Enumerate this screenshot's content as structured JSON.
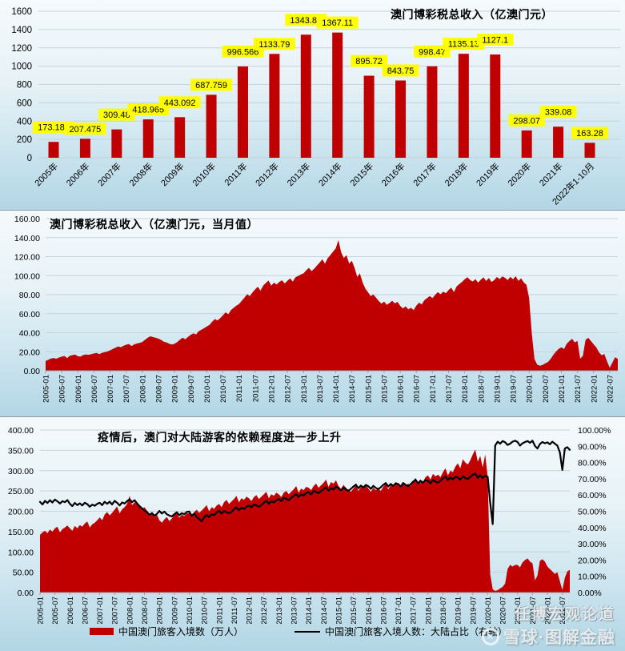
{
  "watermark": {
    "line1": "任博宏观论道",
    "line2": "雪球·图解金融",
    "logo_glyph": "✕"
  },
  "chart_data": [
    {
      "type": "bar",
      "title": "澳门博彩税总收入（亿澳门元）",
      "categories": [
        "2005年",
        "2006年",
        "2007年",
        "2008年",
        "2009年",
        "2010年",
        "2011年",
        "2012年",
        "2013年",
        "2014年",
        "2015年",
        "2016年",
        "2017年",
        "2018年",
        "2019年",
        "2020年",
        "2021年",
        "2022年1-10月"
      ],
      "values": [
        173.187,
        207.475,
        309.48,
        418.965,
        443.092,
        687.759,
        996.566,
        1133.79,
        1343.81,
        1367.11,
        895.72,
        843.75,
        998.47,
        1135.13,
        1127.1,
        298.07,
        339.08,
        163.28
      ],
      "data_labels": [
        "173.187",
        "207.475",
        "309.48",
        "418.965",
        "443.092",
        "687.759",
        "996.566",
        "1133.79",
        "1343.81",
        "1367.11",
        "895.72",
        "843.75",
        "998.47",
        "1135.13",
        "1127.1",
        "298.07",
        "339.08",
        "163.28"
      ],
      "ylim": [
        0,
        1600
      ],
      "y_tick_labels": [
        "0",
        "200",
        "400",
        "600",
        "800",
        "1000",
        "1200",
        "1400",
        "1600"
      ],
      "bar_color": "#C00000",
      "label_bg": "#FFFF00",
      "grid": true,
      "legend": "none"
    },
    {
      "type": "area",
      "title": "澳门博彩税总收入（亿澳门元，当月值）",
      "x_range": [
        "2005-01",
        "2022-10"
      ],
      "x_tick_labels": [
        "2005-01",
        "2005-07",
        "2006-01",
        "2006-07",
        "2007-01",
        "2007-07",
        "2008-01",
        "2008-07",
        "2009-01",
        "2009-07",
        "2010-01",
        "2010-07",
        "2011-01",
        "2011-07",
        "2012-01",
        "2012-07",
        "2013-01",
        "2013-07",
        "2014-01",
        "2014-07",
        "2015-01",
        "2015-07",
        "2016-01",
        "2016-07",
        "2017-01",
        "2017-07",
        "2018-01",
        "2018-07",
        "2019-01",
        "2019-07",
        "2020-01",
        "2020-07",
        "2021-01",
        "2021-07",
        "2022-01",
        "2022-07"
      ],
      "values": [
        10.2,
        11.5,
        12.8,
        13.4,
        12.6,
        13.9,
        14.8,
        15.6,
        13.2,
        15.8,
        16.4,
        17.1,
        15.2,
        14.8,
        16.5,
        17.2,
        16.8,
        17.5,
        18.2,
        18.8,
        17.4,
        18.9,
        19.6,
        20.3,
        21.5,
        22.8,
        24.2,
        25.6,
        24.8,
        26.2,
        27.4,
        28.1,
        25.9,
        27.8,
        28.6,
        29.4,
        30.2,
        32.5,
        34.8,
        36.2,
        35.4,
        34.6,
        33.8,
        32.4,
        30.6,
        29.8,
        28.4,
        27.6,
        28.4,
        30.2,
        32.6,
        34.8,
        33.2,
        35.6,
        37.8,
        39.4,
        38.2,
        41.6,
        43.2,
        44.8,
        46.5,
        48.2,
        51.6,
        54.3,
        52.8,
        55.4,
        58.2,
        61.5,
        59.4,
        63.8,
        66.2,
        68.4,
        70.2,
        73.5,
        76.8,
        80.4,
        78.6,
        82.3,
        85.6,
        88.4,
        84.2,
        89.6,
        92.4,
        94.8,
        89.4,
        92.6,
        90.8,
        93.4,
        95.2,
        91.8,
        94.6,
        97.2,
        93.8,
        98.4,
        99.6,
        101.2,
        102.4,
        105.6,
        108.2,
        104.8,
        107.4,
        110.6,
        113.8,
        117.2,
        112.6,
        118.4,
        121.6,
        125.2,
        128.6,
        137.4,
        124.8,
        118.6,
        121.4,
        112.8,
        115.6,
        108.4,
        98.6,
        102.4,
        92.8,
        86.4,
        82.6,
        78.4,
        80.2,
        76.8,
        73.4,
        70.6,
        72.8,
        69.4,
        71.2,
        73.6,
        70.8,
        72.4,
        68.2,
        65.4,
        67.8,
        64.6,
        66.2,
        63.8,
        68.4,
        71.6,
        69.8,
        74.2,
        76.4,
        78.6,
        76.4,
        79.8,
        82.6,
        80.4,
        83.2,
        81.6,
        84.8,
        87.4,
        82.8,
        88.6,
        91.2,
        93.4,
        96.2,
        98.4,
        95.6,
        93.8,
        96.4,
        92.6,
        95.8,
        98.2,
        94.4,
        97.6,
        93.2,
        95.4,
        98.6,
        96.4,
        99.2,
        97.8,
        95.4,
        98.8,
        96.2,
        99.4,
        94.6,
        97.2,
        92.8,
        90.4,
        76.2,
        38.4,
        12.2,
        6.4,
        5.2,
        6.1,
        7.8,
        9.2,
        12.4,
        16.6,
        20.2,
        23.1,
        24.6,
        22.8,
        28.4,
        31.2,
        33.6,
        29.8,
        31.4,
        12.6,
        15.8,
        32.4,
        34.6,
        31.2,
        27.8,
        24.6,
        19.4,
        16.2,
        17.6,
        9.8,
        3.2,
        8.6,
        14.2,
        12.4
      ],
      "ylim": [
        0,
        160
      ],
      "y_tick_labels": [
        "0.00",
        "20.00",
        "40.00",
        "60.00",
        "80.00",
        "100.00",
        "120.00",
        "140.00",
        "160.00"
      ],
      "color": "#C00000",
      "grid": true,
      "legend": "none"
    },
    {
      "type": "combo",
      "title": "疫情后，澳门对大陆游客的依赖程度进一步上升",
      "x_range": [
        "2005-01",
        "2022-10"
      ],
      "x_tick_labels": [
        "2005-01",
        "2005-07",
        "2006-01",
        "2006-07",
        "2007-01",
        "2007-07",
        "2008-01",
        "2008-07",
        "2009-01",
        "2009-07",
        "2010-01",
        "2010-07",
        "2011-01",
        "2011-07",
        "2012-01",
        "2012-07",
        "2013-01",
        "2013-07",
        "2014-01",
        "2014-07",
        "2015-01",
        "2015-07",
        "2016-01",
        "2016-07",
        "2017-01",
        "2017-07",
        "2018-01",
        "2018-07",
        "2019-01",
        "2019-07",
        "2020-01",
        "2020-07",
        "2021-01",
        "2021-07",
        "2022-01",
        "2022-07"
      ],
      "left_ylim": [
        0,
        400
      ],
      "left_y_tick_labels": [
        "0.00",
        "50.00",
        "100.00",
        "150.00",
        "200.00",
        "250.00",
        "300.00",
        "350.00",
        "400.00"
      ],
      "right_ylim": [
        0,
        100
      ],
      "right_y_tick_labels": [
        "0.00%",
        "10.00%",
        "20.00%",
        "30.00%",
        "40.00%",
        "50.00%",
        "60.00%",
        "70.00%",
        "80.00%",
        "90.00%",
        "100.00%"
      ],
      "legend_position": "bottom",
      "series": [
        {
          "name": "中国澳门旅客入境数（万人）",
          "type": "area",
          "axis": "left",
          "color": "#C00000",
          "values": [
            142,
            148,
            152,
            146,
            155,
            150,
            158,
            162,
            148,
            156,
            160,
            165,
            158,
            152,
            164,
            158,
            166,
            162,
            170,
            175,
            160,
            168,
            172,
            178,
            185,
            178,
            192,
            198,
            190,
            196,
            204,
            212,
            195,
            205,
            210,
            218,
            238,
            215,
            222,
            218,
            212,
            205,
            210,
            202,
            188,
            195,
            185,
            192,
            178,
            172,
            180,
            186,
            176,
            182,
            190,
            196,
            184,
            192,
            188,
            195,
            195,
            188,
            198,
            204,
            196,
            202,
            208,
            215,
            200,
            210,
            206,
            214,
            218,
            210,
            222,
            228,
            218,
            224,
            230,
            238,
            222,
            232,
            228,
            236,
            232,
            225,
            235,
            240,
            230,
            236,
            242,
            248,
            232,
            242,
            238,
            246,
            242,
            235,
            246,
            250,
            242,
            248,
            254,
            262,
            246,
            256,
            252,
            260,
            258,
            252,
            262,
            268,
            258,
            264,
            270,
            278,
            260,
            272,
            268,
            276,
            262,
            255,
            265,
            258,
            252,
            248,
            256,
            264,
            250,
            260,
            256,
            266,
            256,
            248,
            258,
            252,
            256,
            250,
            260,
            268,
            254,
            264,
            262,
            272,
            268,
            258,
            270,
            264,
            268,
            262,
            274,
            282,
            266,
            276,
            272,
            284,
            288,
            278,
            292,
            286,
            290,
            284,
            296,
            306,
            288,
            300,
            296,
            310,
            318,
            306,
            328,
            320,
            315,
            326,
            340,
            352,
            322,
            336,
            308,
            340,
            285,
            46,
            8,
            4,
            6,
            10,
            14,
            22,
            58,
            68,
            64,
            68,
            68,
            62,
            74,
            80,
            84,
            76,
            72,
            30,
            42,
            78,
            82,
            76,
            64,
            58,
            52,
            46,
            50,
            28,
            6,
            36,
            52,
            56
          ]
        },
        {
          "name": "中国澳门旅客入境人数：大陆占比（右轴）",
          "type": "line",
          "axis": "right",
          "color": "#000000",
          "values": [
            55.8,
            54.2,
            56.4,
            55.1,
            56.8,
            55.4,
            57.2,
            56.1,
            54.8,
            56.2,
            55.6,
            56.9,
            54.6,
            53.2,
            55.1,
            53.8,
            54.9,
            53.6,
            55.2,
            54.4,
            52.8,
            54.1,
            53.4,
            54.6,
            55.2,
            53.8,
            55.8,
            54.6,
            55.9,
            54.2,
            56.4,
            55.2,
            53.6,
            55.4,
            54.8,
            56.2,
            57.4,
            55.6,
            56.8,
            54.9,
            53.2,
            51.8,
            50.4,
            49.6,
            47.8,
            48.9,
            47.2,
            48.4,
            50.2,
            48.6,
            49.8,
            48.2,
            47.4,
            46.8,
            48.2,
            49.4,
            47.6,
            48.8,
            48.2,
            49.6,
            49.8,
            47.2,
            48.6,
            46.4,
            45.2,
            43.8,
            46.2,
            47.8,
            46.4,
            48.2,
            47.6,
            49.2,
            50.4,
            48.6,
            50.2,
            49.4,
            48.8,
            49.6,
            51.2,
            52.4,
            50.6,
            52.2,
            51.4,
            52.8,
            53.6,
            52.4,
            54.2,
            53.6,
            52.8,
            53.9,
            55.2,
            56.4,
            54.6,
            56.2,
            55.4,
            56.8,
            57.6,
            56.2,
            58.4,
            57.6,
            56.8,
            58.2,
            59.4,
            60.6,
            58.8,
            60.4,
            59.6,
            61.2,
            61.8,
            60.4,
            62.6,
            61.8,
            61.2,
            62.4,
            63.6,
            64.8,
            62.6,
            64.2,
            63.4,
            65.2,
            64.2,
            62.8,
            64.6,
            63.4,
            62.6,
            63.8,
            65.2,
            66.4,
            64.2,
            65.8,
            64.6,
            66.2,
            65.4,
            63.8,
            65.6,
            64.4,
            63.6,
            64.8,
            66.2,
            67.4,
            65.2,
            66.8,
            65.6,
            67.2,
            66.8,
            65.2,
            67.4,
            66.2,
            65.4,
            66.6,
            68.2,
            69.4,
            67.2,
            68.8,
            67.6,
            69.2,
            68.6,
            67.2,
            69.4,
            68.2,
            67.6,
            68.8,
            70.2,
            71.4,
            69.2,
            70.8,
            69.6,
            71.2,
            70.8,
            69.4,
            71.6,
            70.4,
            69.8,
            71.2,
            72.4,
            73.2,
            70.6,
            72.2,
            70.4,
            71.8,
            71.2,
            55.4,
            42.1,
            90.5,
            92.8,
            91.6,
            93.2,
            92.4,
            90.8,
            91.6,
            92.8,
            93.4,
            92.6,
            90.4,
            91.8,
            92.6,
            93.2,
            92.1,
            93.4,
            90.2,
            88.6,
            91.4,
            92.6,
            91.8,
            92.4,
            91.2,
            92.8,
            91.6,
            90.4,
            86.2,
            75.4,
            88.6,
            89.4,
            87.8
          ]
        }
      ]
    }
  ]
}
